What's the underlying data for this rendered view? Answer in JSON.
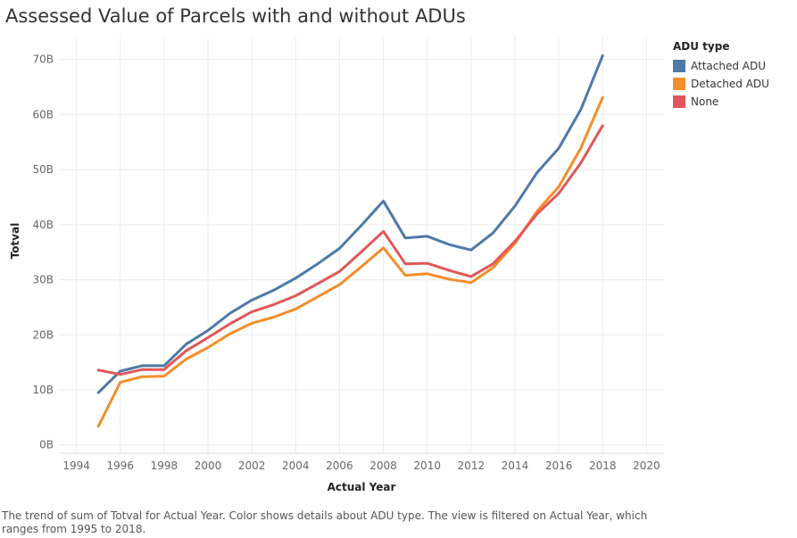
{
  "chart_data": {
    "type": "line",
    "title": "Assessed Value of Parcels with and without ADUs",
    "xlabel": "Actual Year",
    "ylabel": "Totval",
    "x": [
      1995,
      1996,
      1997,
      1998,
      1999,
      2000,
      2001,
      2002,
      2003,
      2004,
      2005,
      2006,
      2007,
      2008,
      2009,
      2010,
      2011,
      2012,
      2013,
      2014,
      2015,
      2016,
      2017,
      2018
    ],
    "x_ticks": [
      "1994",
      "1996",
      "1998",
      "2000",
      "2002",
      "2004",
      "2006",
      "2008",
      "2010",
      "2012",
      "2014",
      "2016",
      "2018",
      "2020"
    ],
    "xlim": [
      1993.2,
      2020.8
    ],
    "y_ticks": [
      "0B",
      "10B",
      "20B",
      "30B",
      "40B",
      "50B",
      "60B",
      "70B"
    ],
    "ylim": [
      -1.5,
      74
    ],
    "grid": true,
    "legend_title": "ADU type",
    "legend_position": "top-right",
    "series": [
      {
        "name": "Attached ADU",
        "color": "#4e79a7",
        "values": [
          9.5,
          13.4,
          14.4,
          14.4,
          18.3,
          20.8,
          23.9,
          26.3,
          28.1,
          30.3,
          32.9,
          35.7,
          39.9,
          44.3,
          37.6,
          37.9,
          36.4,
          35.4,
          38.5,
          43.4,
          49.4,
          53.9,
          60.9,
          70.7
        ]
      },
      {
        "name": "Detached ADU",
        "color": "#f28e2b",
        "values": [
          3.4,
          11.4,
          12.4,
          12.5,
          15.6,
          17.7,
          20.2,
          22.1,
          23.2,
          24.7,
          26.9,
          29.1,
          32.4,
          35.8,
          30.8,
          31.1,
          30.1,
          29.5,
          32.2,
          36.6,
          42.4,
          46.9,
          53.9,
          63.1
        ]
      },
      {
        "name": "None",
        "color": "#e15759",
        "values": [
          13.6,
          12.8,
          13.7,
          13.7,
          17.1,
          19.5,
          22.0,
          24.2,
          25.5,
          27.1,
          29.3,
          31.5,
          35.1,
          38.8,
          32.9,
          33.0,
          31.7,
          30.6,
          32.9,
          37.0,
          41.9,
          45.7,
          51.2,
          58.0
        ]
      }
    ]
  },
  "caption": "The trend of sum of Totval for Actual Year.  Color shows details about ADU type. The view is filtered on Actual Year, which ranges from 1995 to 2018."
}
